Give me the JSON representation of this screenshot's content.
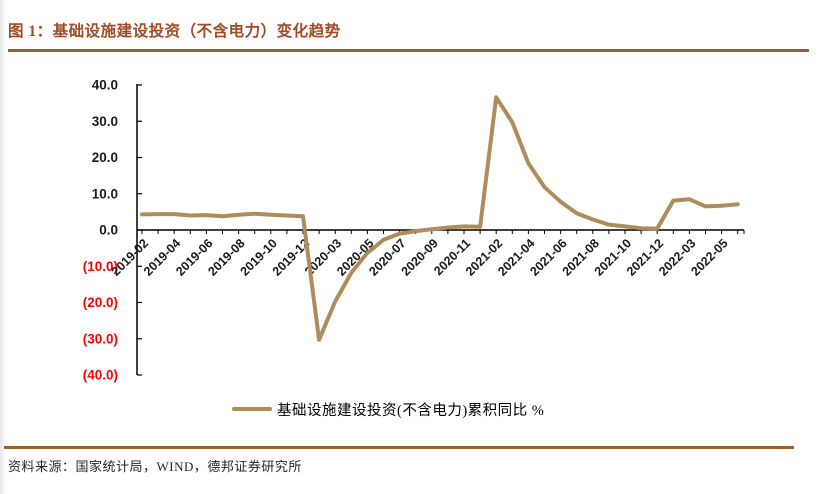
{
  "figure": {
    "title": "图 1：基础设施建设投资（不含电力）变化趋势",
    "source_note": "资料来源：国家统计局，WIND，德邦证券研究所"
  },
  "colors": {
    "title_text": "#9F4B26",
    "rule": "#9A6233",
    "series_line": "#AF8C5B",
    "axis": "#000000",
    "tick_label": "#1a1a1a",
    "negative_tick_label": "#FF0000",
    "source_text": "#262626"
  },
  "chart_data": {
    "type": "line",
    "title": "",
    "xlabel": "",
    "ylabel": "",
    "ylim": [
      -40,
      40
    ],
    "grid": false,
    "legend_position": "bottom-center",
    "legend": [
      "基础设施建设投资(不含电力)累积同比 %"
    ],
    "x": [
      "2019-02",
      "2019-03",
      "2019-04",
      "2019-05",
      "2019-06",
      "2019-07",
      "2019-08",
      "2019-09",
      "2019-10",
      "2019-11",
      "2019-12",
      "2020-02",
      "2020-03",
      "2020-04",
      "2020-05",
      "2020-06",
      "2020-07",
      "2020-08",
      "2020-09",
      "2020-10",
      "2020-11",
      "2020-12",
      "2021-02",
      "2021-03",
      "2021-04",
      "2021-05",
      "2021-06",
      "2021-07",
      "2021-08",
      "2021-09",
      "2021-10",
      "2021-11",
      "2021-12",
      "2022-02",
      "2022-03",
      "2022-04",
      "2022-05",
      "2022-06"
    ],
    "x_tick_labels_shown": [
      "2019-02",
      "2019-04",
      "2019-06",
      "2019-08",
      "2019-10",
      "2019-12",
      "2020-03",
      "2020-05",
      "2020-07",
      "2020-09",
      "2020-11",
      "2021-02",
      "2021-04",
      "2021-06",
      "2021-08",
      "2021-10",
      "2021-12",
      "2022-03",
      "2022-05"
    ],
    "series": [
      {
        "name": "基础设施建设投资(不含电力)累积同比 %",
        "values": [
          4.3,
          4.4,
          4.4,
          4.0,
          4.1,
          3.8,
          4.2,
          4.5,
          4.2,
          4.0,
          3.8,
          -30.3,
          -19.7,
          -11.8,
          -6.3,
          -2.7,
          -1.0,
          -0.3,
          0.2,
          0.7,
          1.0,
          0.9,
          36.6,
          29.7,
          18.4,
          11.8,
          7.8,
          4.6,
          2.9,
          1.5,
          1.0,
          0.5,
          0.4,
          8.1,
          8.5,
          6.5,
          6.7,
          7.1
        ]
      }
    ],
    "y_ticks": [
      40,
      30,
      20,
      10,
      0,
      -10,
      -20,
      -30,
      -40
    ],
    "y_tick_labels": [
      "40.0",
      "30.0",
      "20.0",
      "10.0",
      "0.0",
      "(10.0)",
      "(20.0)",
      "(30.0)",
      "(40.0)"
    ],
    "negative_label_style": "parentheses-red"
  }
}
